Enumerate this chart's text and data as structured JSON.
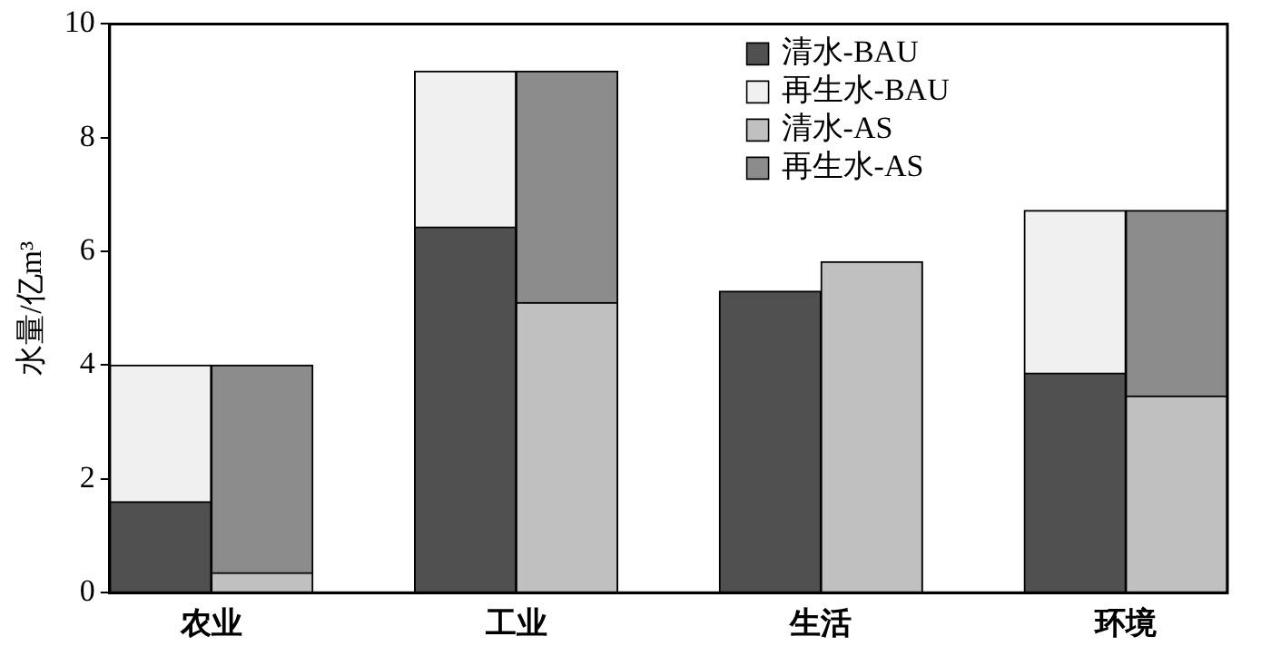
{
  "chart_data": {
    "type": "bar",
    "ylabel": "水量/亿m³",
    "categories": [
      "农业",
      null,
      null,
      "工业",
      null,
      null,
      "生活",
      null,
      null,
      "环境",
      null
    ],
    "stacked": true,
    "series": [
      {
        "name": "清水-BAU",
        "color": "#505050",
        "values": [
          1.6,
          null,
          null,
          6.43,
          null,
          null,
          5.3,
          null,
          null,
          3.86,
          null
        ]
      },
      {
        "name": "再生水-BAU",
        "color": "#f0f0f0",
        "values": [
          2.4,
          null,
          null,
          2.74,
          null,
          null,
          0,
          null,
          null,
          2.86,
          null
        ]
      },
      {
        "name": "清水-AS",
        "color": "#c0c0c0",
        "values": [
          null,
          0.35,
          null,
          null,
          5.1,
          null,
          null,
          5.82,
          null,
          null,
          3.46
        ]
      },
      {
        "name": "再生水-AS",
        "color": "#8c8c8c",
        "values": [
          null,
          3.65,
          null,
          null,
          4.07,
          null,
          null,
          0,
          null,
          null,
          3.26
        ]
      }
    ],
    "ylim": [
      0,
      10
    ],
    "yticks": [
      0,
      2,
      4,
      6,
      8,
      10
    ],
    "grid": false,
    "legend": "top right"
  }
}
